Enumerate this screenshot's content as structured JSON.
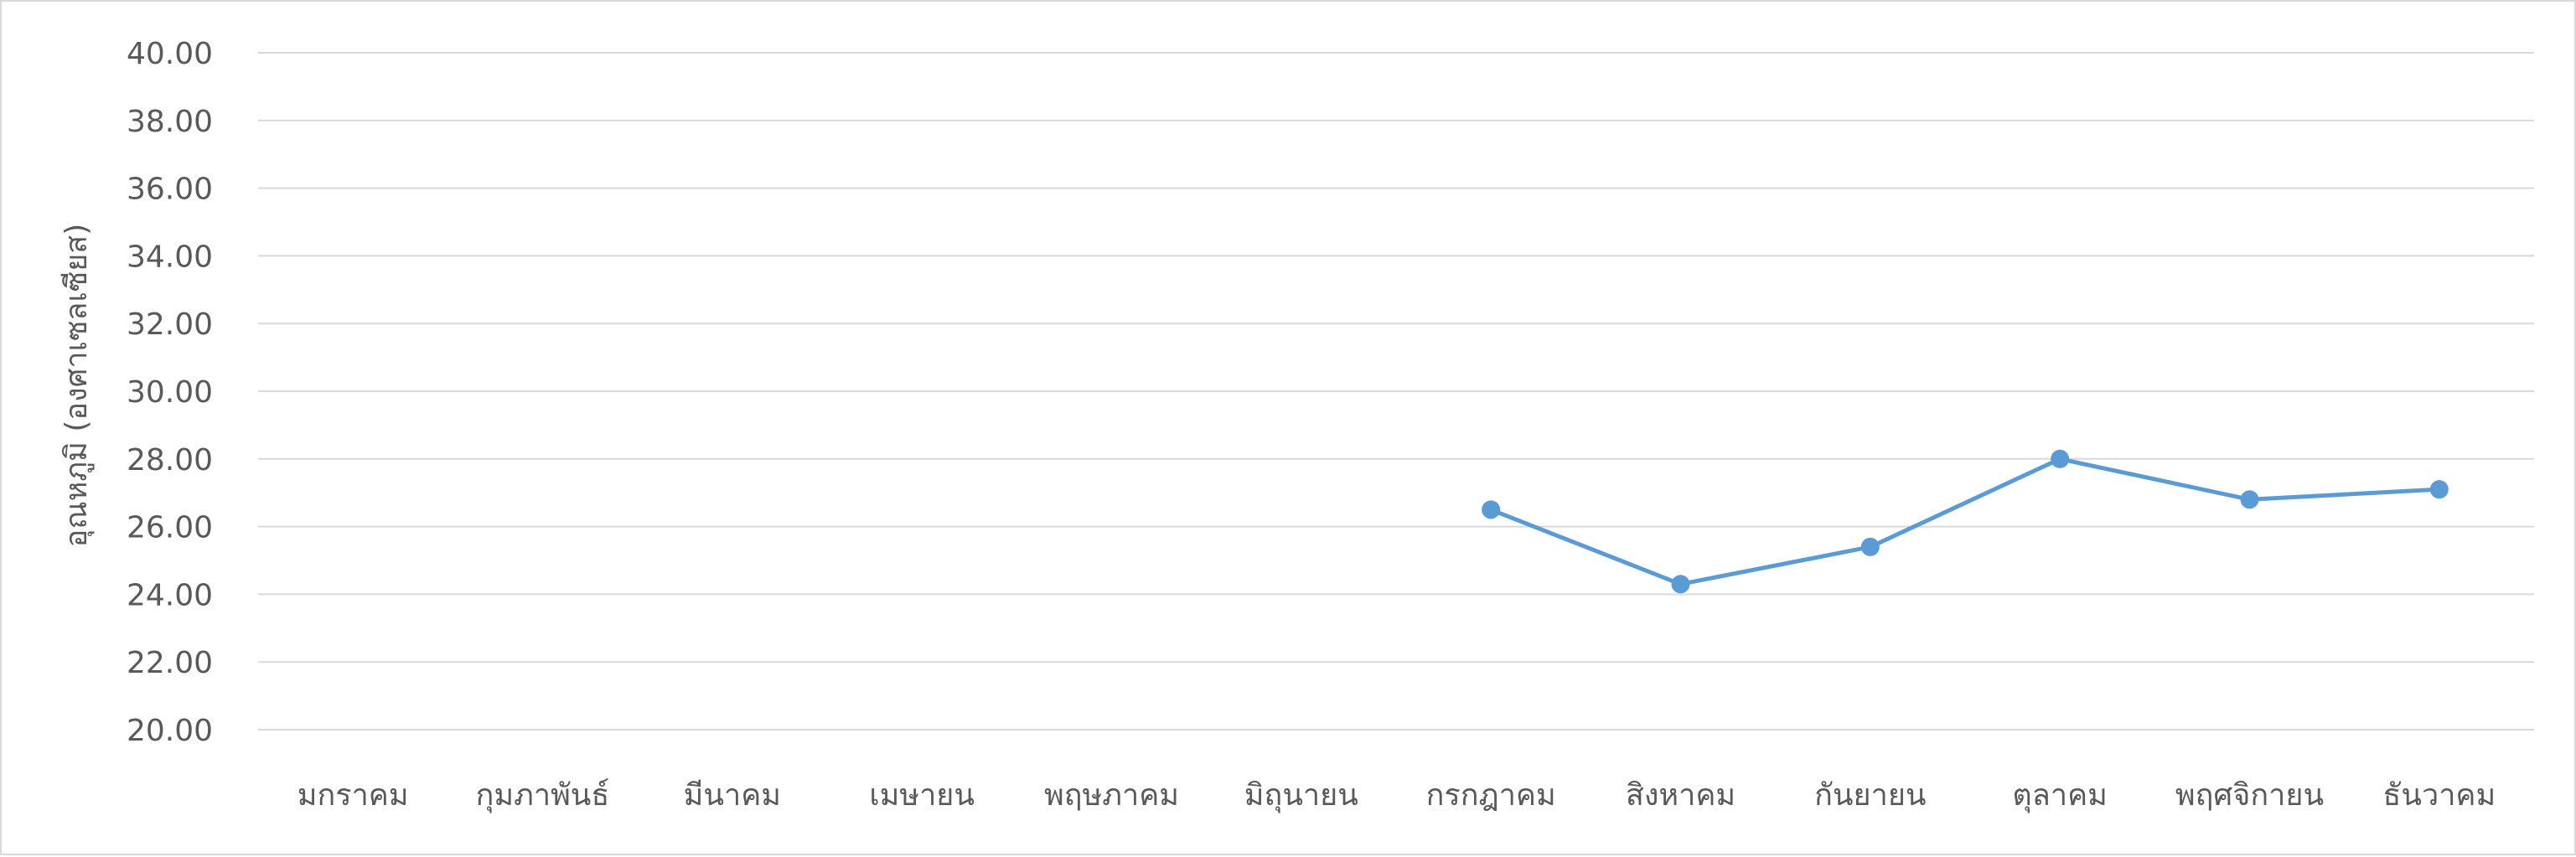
{
  "chart_data": {
    "type": "line",
    "title": "",
    "xlabel": "",
    "ylabel": "อุณหภูมิ (องศาเซลเซียส)",
    "ylim": [
      20,
      40
    ],
    "ytick_step": 2,
    "ytick_labels": [
      "20.00",
      "22.00",
      "24.00",
      "26.00",
      "28.00",
      "30.00",
      "32.00",
      "34.00",
      "36.00",
      "38.00",
      "40.00"
    ],
    "grid": true,
    "legend": "none",
    "categories": [
      "มกราคม",
      "กุมภาพันธ์",
      "มีนาคม",
      "เมษายน",
      "พฤษภาคม",
      "มิถุนายน",
      "กรกฎาคม",
      "สิงหาคม",
      "กันยายน",
      "ตุลาคม",
      "พฤศจิกายน",
      "ธันวาคม"
    ],
    "series": [
      {
        "values": [
          null,
          null,
          null,
          null,
          null,
          null,
          26.5,
          24.3,
          25.4,
          28.0,
          26.8,
          27.1
        ],
        "color": "#5b9bd5"
      }
    ]
  }
}
